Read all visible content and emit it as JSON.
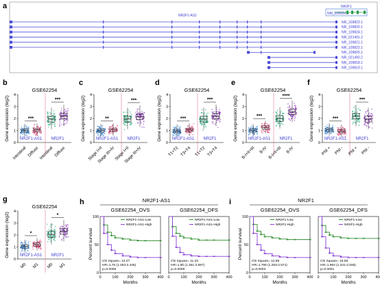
{
  "panel_a": {
    "label": "a",
    "gene_top_right": "NR2F1",
    "top_transcript": "NM_005654.6",
    "lnc_label": "NR2F1-AS1",
    "transcripts": [
      "NR_109823.1",
      "NR_109820.1",
      "NR_109824.1",
      "NR_021491.2",
      "NR_109821.1",
      "NR_109822.1",
      "NR_109825.1",
      "NR_021490.2",
      "NR_109818.1",
      "NR_109819.1"
    ]
  },
  "boxplot_panels": [
    {
      "label": "b",
      "title": "GSE62254",
      "ylabel": "Gene expression (log2)",
      "yticks": [
        "0",
        "1",
        "2",
        "3",
        "4"
      ],
      "groups": [
        "NR2F1-AS1",
        "NR2F1"
      ],
      "categories": [
        "Intestinal",
        "Diffuse",
        "Intestinal",
        "Diffuse"
      ],
      "sig": [
        "***",
        "***"
      ]
    },
    {
      "label": "c",
      "title": "GSE62254",
      "ylabel": "Gene expression (log2)",
      "yticks": [
        "0",
        "1",
        "2",
        "3",
        "4"
      ],
      "groups": [
        "NR2F1-AS1",
        "NR2F1"
      ],
      "categories": [
        "Stage I+II",
        "Stage III+IV",
        "Stage I+II",
        "Stage III+IV"
      ],
      "sig": [
        "**",
        "***"
      ]
    },
    {
      "label": "d",
      "title": "GSE62254",
      "ylabel": "Gene expression (log2)",
      "yticks": [
        "0",
        "1",
        "2",
        "3",
        "4"
      ],
      "groups": [
        "NR2F1-AS1",
        "NR2F1"
      ],
      "categories": [
        "T1+T2",
        "T3+T4",
        "T1+T2",
        "T3+T4"
      ],
      "sig": [
        "***",
        "***"
      ]
    },
    {
      "label": "e",
      "title": "GSE62254",
      "ylabel": "Gene expression (log2)",
      "yticks": [
        "0",
        "1",
        "2",
        "3",
        "4"
      ],
      "groups": [
        "NR2F1-AS1",
        "NR2F1"
      ],
      "categories": [
        "B-I+II+III",
        "B-IV",
        "B-I+II+III",
        "B-IV"
      ],
      "sig": [
        "***",
        "****"
      ]
    },
    {
      "label": "f",
      "title": "GSE62254",
      "ylabel": "Gene expression (log2)",
      "yticks": [
        "0",
        "1",
        "2",
        "3",
        "4"
      ],
      "groups": [
        "NR2F1-AS1",
        "NR2F1"
      ],
      "categories": [
        "PNI +",
        "PNI -",
        "PNI +",
        "PNI -"
      ],
      "sig": [
        "***",
        "***"
      ]
    },
    {
      "label": "g",
      "title": "GSE62254",
      "ylabel": "Gene expression (log2)",
      "yticks": [
        "0",
        "1",
        "2",
        "3",
        "4"
      ],
      "groups": [
        "NR2F1-AS1",
        "NR2F1"
      ],
      "categories": [
        "M0",
        "M1",
        "M0",
        "M1"
      ],
      "sig": [
        "*",
        "*"
      ]
    }
  ],
  "km_panels": [
    {
      "label": "h",
      "header": "NR2F1-AS1",
      "ylabel": "Percent survival",
      "xlabel": "Months",
      "yticks": [
        "0",
        "50",
        "100"
      ],
      "plots": [
        {
          "title": "GSE62254_OVS",
          "legend": [
            "NR2F1-AS1-Low",
            "NR2F1-AS1-High"
          ],
          "xticks": [
            "0",
            "100",
            "200",
            "300",
            "400"
          ],
          "stats": [
            "Chi Square= 12.27",
            "HR=1.75 (1.253-2.445)",
            "p=0.0005"
          ]
        },
        {
          "title": "GSE62254_DFS",
          "legend": [
            "NR2F1-AS1-Low",
            "NR2F1-AS1-High"
          ],
          "xticks": [
            "0",
            "100",
            "200",
            "300",
            "400"
          ],
          "stats": [
            "Chi Square= 11.23",
            "HR=1.80 (1.251-2.597)",
            "p=0.0008"
          ]
        }
      ]
    },
    {
      "label": "i",
      "header": "NR2F1",
      "ylabel": "Percent survival",
      "xlabel": "Months",
      "yticks": [
        "0",
        "50",
        "100"
      ],
      "plots": [
        {
          "title": "GSE62254_OVS",
          "legend": [
            "NR2F1-Low",
            "NR2F1-High"
          ],
          "xticks": [
            "0",
            "100",
            "200",
            "300",
            "400"
          ],
          "stats": [
            "Chi Square= 12.85",
            "HR=1.795 (1.253-2.571)",
            "p=0.0003"
          ]
        },
        {
          "title": "GSE62254_DFS",
          "legend": [
            "NR2F1-Low",
            "NR2F1-High"
          ],
          "xticks": [
            "0",
            "100",
            "200",
            "300",
            "400"
          ],
          "stats": [
            "Chi Square= 15.06",
            "HR=1.984 (1.341-2.935)",
            "p=0.0001"
          ]
        }
      ]
    }
  ],
  "colors": {
    "blue": "#2a7fd6",
    "pink": "#e0457b",
    "green": "#1fae7a",
    "purple": "#8a2bbf",
    "track": "#4b4bd8",
    "km_green": "#2f8f2f",
    "km_purple": "#8a3fd6"
  },
  "chart_data": [
    {
      "type": "box",
      "panel": "b",
      "categories": [
        "Intestinal",
        "Diffuse",
        "Intestinal",
        "Diffuse"
      ],
      "series": [
        {
          "name": "NR2F1-AS1",
          "medians": [
            1.0,
            1.05
          ]
        },
        {
          "name": "NR2F1",
          "medians": [
            1.95,
            2.2
          ]
        }
      ],
      "ylim": [
        0,
        4
      ]
    },
    {
      "type": "box",
      "panel": "c",
      "categories": [
        "Stage I+II",
        "Stage III+IV",
        "Stage I+II",
        "Stage III+IV"
      ],
      "series": [
        {
          "name": "NR2F1-AS1",
          "medians": [
            1.0,
            1.05
          ]
        },
        {
          "name": "NR2F1",
          "medians": [
            1.95,
            2.15
          ]
        }
      ],
      "ylim": [
        0,
        4
      ]
    },
    {
      "type": "box",
      "panel": "d",
      "categories": [
        "T1+T2",
        "T3+T4",
        "T1+T2",
        "T3+T4"
      ],
      "series": [
        {
          "name": "NR2F1-AS1",
          "medians": [
            0.95,
            1.05
          ]
        },
        {
          "name": "NR2F1",
          "medians": [
            1.95,
            2.2
          ]
        }
      ],
      "ylim": [
        0,
        4
      ]
    },
    {
      "type": "box",
      "panel": "e",
      "categories": [
        "B-I+II+III",
        "B-IV",
        "B-I+II+III",
        "B-IV"
      ],
      "series": [
        {
          "name": "NR2F1-AS1",
          "medians": [
            1.0,
            1.25
          ]
        },
        {
          "name": "NR2F1",
          "medians": [
            2.0,
            2.55
          ]
        }
      ],
      "ylim": [
        0,
        4
      ]
    },
    {
      "type": "box",
      "panel": "f",
      "categories": [
        "PNI +",
        "PNI -",
        "PNI +",
        "PNI -"
      ],
      "series": [
        {
          "name": "NR2F1-AS1",
          "medians": [
            1.05,
            0.95
          ]
        },
        {
          "name": "NR2F1",
          "medians": [
            2.2,
            1.95
          ]
        }
      ],
      "ylim": [
        0,
        4
      ]
    },
    {
      "type": "box",
      "panel": "g",
      "categories": [
        "M0",
        "M1",
        "M0",
        "M1"
      ],
      "series": [
        {
          "name": "NR2F1-AS1",
          "medians": [
            1.05,
            1.2
          ]
        },
        {
          "name": "NR2F1",
          "medians": [
            2.05,
            2.3
          ]
        }
      ],
      "ylim": [
        0,
        4
      ]
    },
    {
      "type": "line",
      "panel": "h-OVS",
      "x": [
        0,
        25,
        50,
        75,
        100,
        150,
        200,
        250,
        300,
        400
      ],
      "series": [
        {
          "name": "NR2F1-AS1-Low",
          "values": [
            100,
            85,
            72,
            66,
            62,
            60,
            58,
            57,
            57,
            57
          ]
        },
        {
          "name": "NR2F1-AS1-High",
          "values": [
            100,
            70,
            50,
            40,
            34,
            30,
            28,
            27,
            27,
            27
          ]
        }
      ],
      "ylim": [
        0,
        100
      ]
    },
    {
      "type": "line",
      "panel": "h-DFS",
      "x": [
        0,
        25,
        50,
        75,
        100,
        150,
        200,
        250,
        300,
        400
      ],
      "series": [
        {
          "name": "NR2F1-AS1-Low",
          "values": [
            100,
            82,
            70,
            65,
            62,
            60,
            58,
            58,
            58,
            58
          ]
        },
        {
          "name": "NR2F1-AS1-High",
          "values": [
            100,
            65,
            45,
            36,
            32,
            30,
            29,
            29,
            29,
            29
          ]
        }
      ],
      "ylim": [
        0,
        100
      ]
    },
    {
      "type": "line",
      "panel": "i-OVS",
      "x": [
        0,
        25,
        50,
        75,
        100,
        150,
        200,
        250,
        300,
        400
      ],
      "series": [
        {
          "name": "NR2F1-Low",
          "values": [
            100,
            86,
            74,
            68,
            64,
            62,
            60,
            59,
            59,
            59
          ]
        },
        {
          "name": "NR2F1-High",
          "values": [
            100,
            70,
            50,
            40,
            34,
            30,
            28,
            27,
            27,
            27
          ]
        }
      ],
      "ylim": [
        0,
        100
      ]
    },
    {
      "type": "line",
      "panel": "i-DFS",
      "x": [
        0,
        25,
        50,
        75,
        100,
        150,
        200,
        250,
        300,
        400
      ],
      "series": [
        {
          "name": "NR2F1-Low",
          "values": [
            100,
            84,
            72,
            67,
            64,
            62,
            61,
            61,
            61,
            61
          ]
        },
        {
          "name": "NR2F1-High",
          "values": [
            100,
            64,
            44,
            35,
            30,
            28,
            27,
            27,
            27,
            27
          ]
        }
      ],
      "ylim": [
        0,
        100
      ]
    }
  ]
}
